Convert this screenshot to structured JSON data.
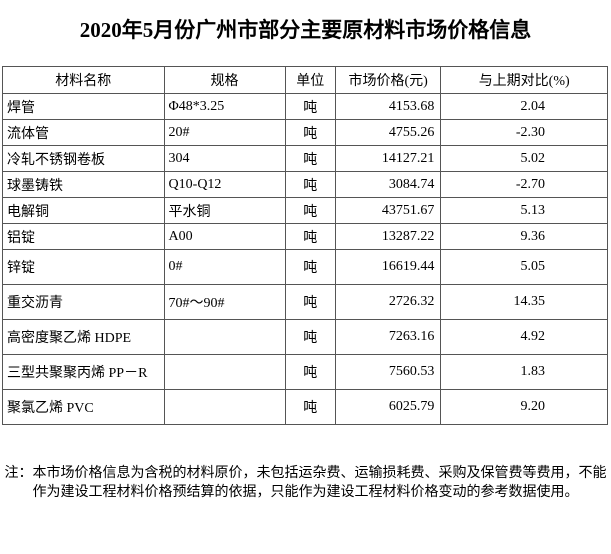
{
  "title": "2020年5月份广州市部分主要原材料市场价格信息",
  "table": {
    "header": [
      "材料名称",
      "规格",
      "单位",
      "市场价格(元)",
      "与上期对比(%)"
    ],
    "rows": [
      [
        "焊管",
        "Φ48*3.25",
        "吨",
        "4153.68",
        "2.04"
      ],
      [
        "流体管",
        "20#",
        "吨",
        "4755.26",
        "-2.30"
      ],
      [
        "冷轧不锈钢卷板",
        "304",
        "吨",
        "14127.21",
        "5.02"
      ],
      [
        "球墨铸铁",
        "Q10-Q12",
        "吨",
        "3084.74",
        "-2.70"
      ],
      [
        "电解铜",
        "平水铜",
        "吨",
        "43751.67",
        "5.13"
      ],
      [
        "铝锭",
        "A00",
        "吨",
        "13287.22",
        "9.36"
      ],
      [
        "锌锭",
        "0#",
        "吨",
        "16619.44",
        "5.05"
      ],
      [
        "重交沥青",
        "70#～90#",
        "吨",
        "2726.32",
        "14.35"
      ],
      [
        "高密度聚乙烯 HDPE",
        null,
        "吨",
        "7263.16",
        "4.92"
      ],
      [
        "三型共聚聚丙烯 PP－R",
        null,
        "吨",
        "7560.53",
        "1.83"
      ],
      [
        "聚氯乙烯 PVC",
        null,
        "吨",
        "6025.79",
        "9.20"
      ]
    ]
  },
  "note": "注：本市场价格信息为含税的材料原价，未包括运杂费、运输损耗费、采购及保管费等费用，不能作为建设工程材料价格预结算的依据，只能作为建设工程材料价格变动的参考数据使用。"
}
